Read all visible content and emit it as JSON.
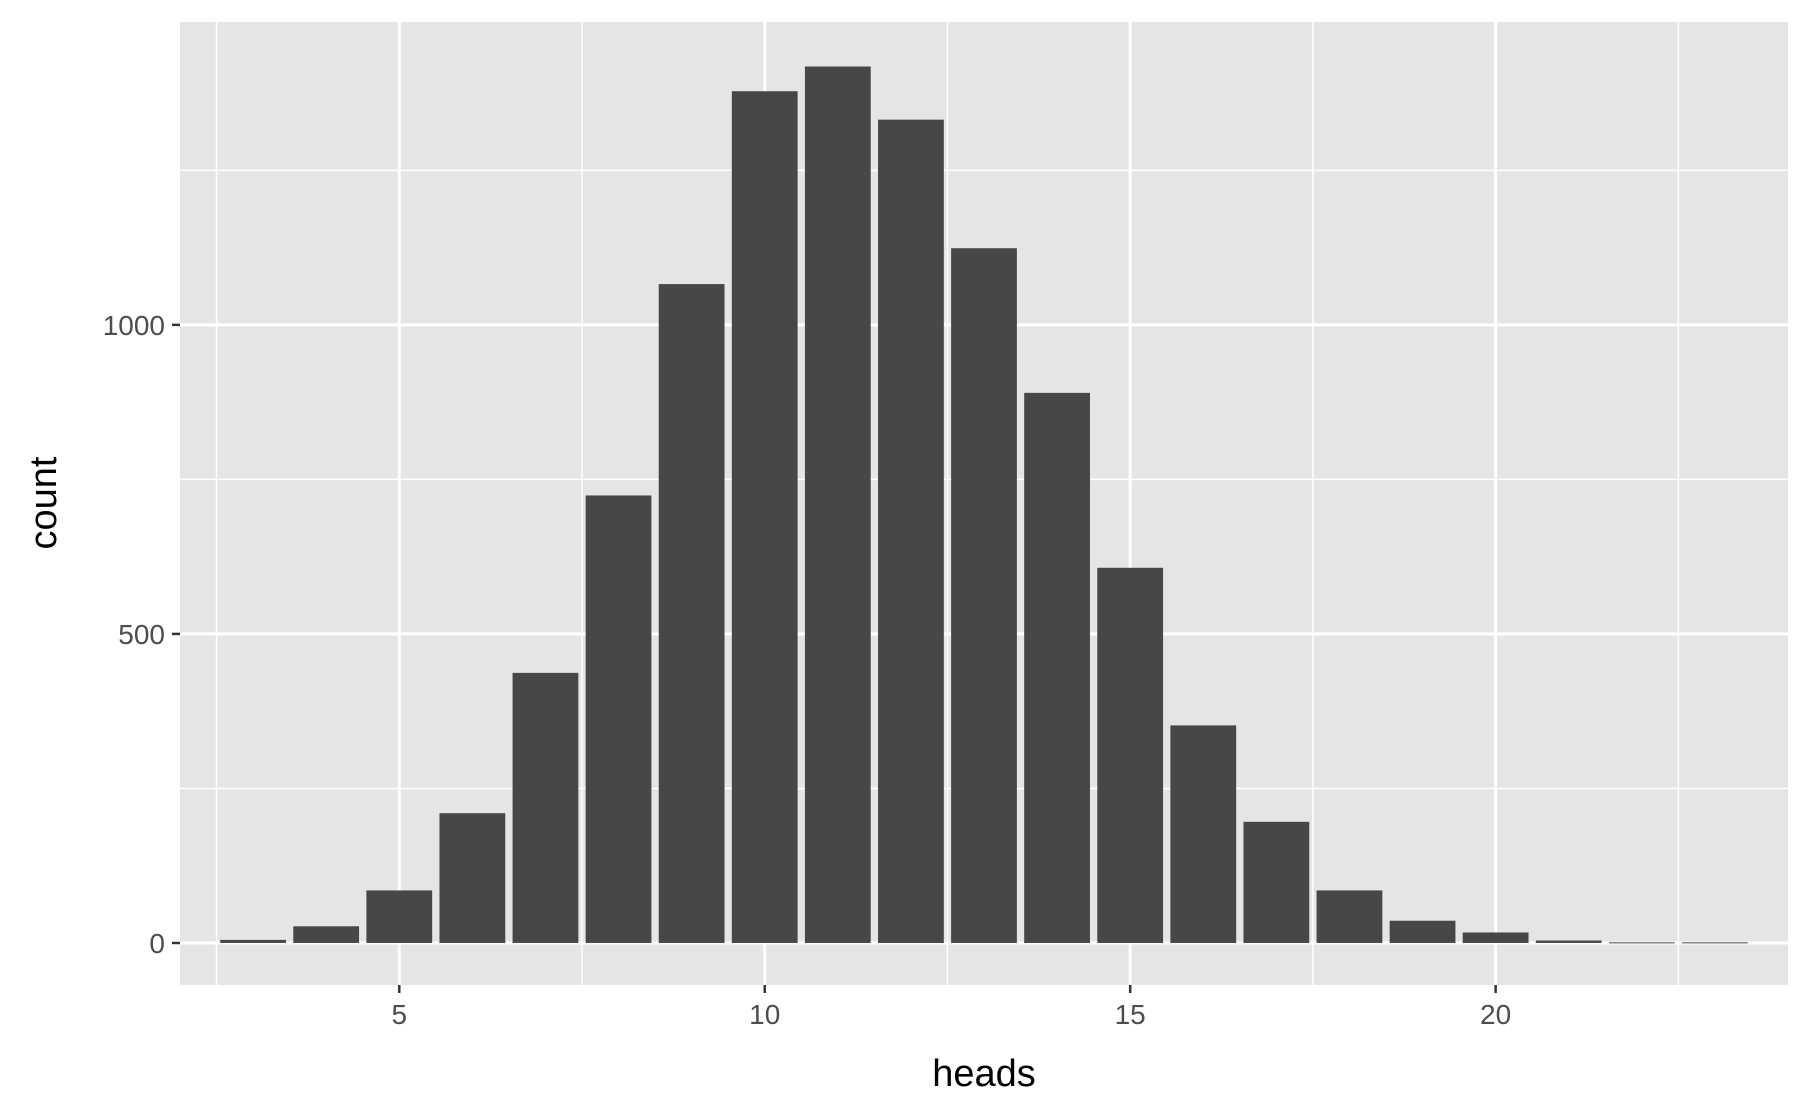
{
  "chart_data": {
    "type": "bar",
    "xlabel": "heads",
    "ylabel": "count",
    "x": [
      3,
      4,
      5,
      6,
      7,
      8,
      9,
      10,
      11,
      12,
      13,
      14,
      15,
      16,
      17,
      18,
      19,
      20,
      21,
      22,
      23
    ],
    "values": [
      5,
      27,
      85,
      210,
      437,
      724,
      1066,
      1378,
      1418,
      1332,
      1124,
      890,
      607,
      352,
      196,
      85,
      36,
      17,
      4,
      1,
      1
    ],
    "xlim": [
      2,
      24
    ],
    "ylim": [
      -68,
      1490
    ],
    "x_ticks": [
      5,
      10,
      15,
      20
    ],
    "x_tick_labels": [
      "5",
      "10",
      "15",
      "20"
    ],
    "y_ticks": [
      0,
      500,
      1000
    ],
    "y_tick_labels": [
      "0",
      "500",
      "1000"
    ],
    "grid": true,
    "colors": {
      "panel_background": "#e5e5e5",
      "grid_line": "#ffffff",
      "bar_fill": "#474747",
      "tick_mark": "#333333",
      "tick_label": "#4d4d4d",
      "axis_title": "#000000"
    }
  }
}
